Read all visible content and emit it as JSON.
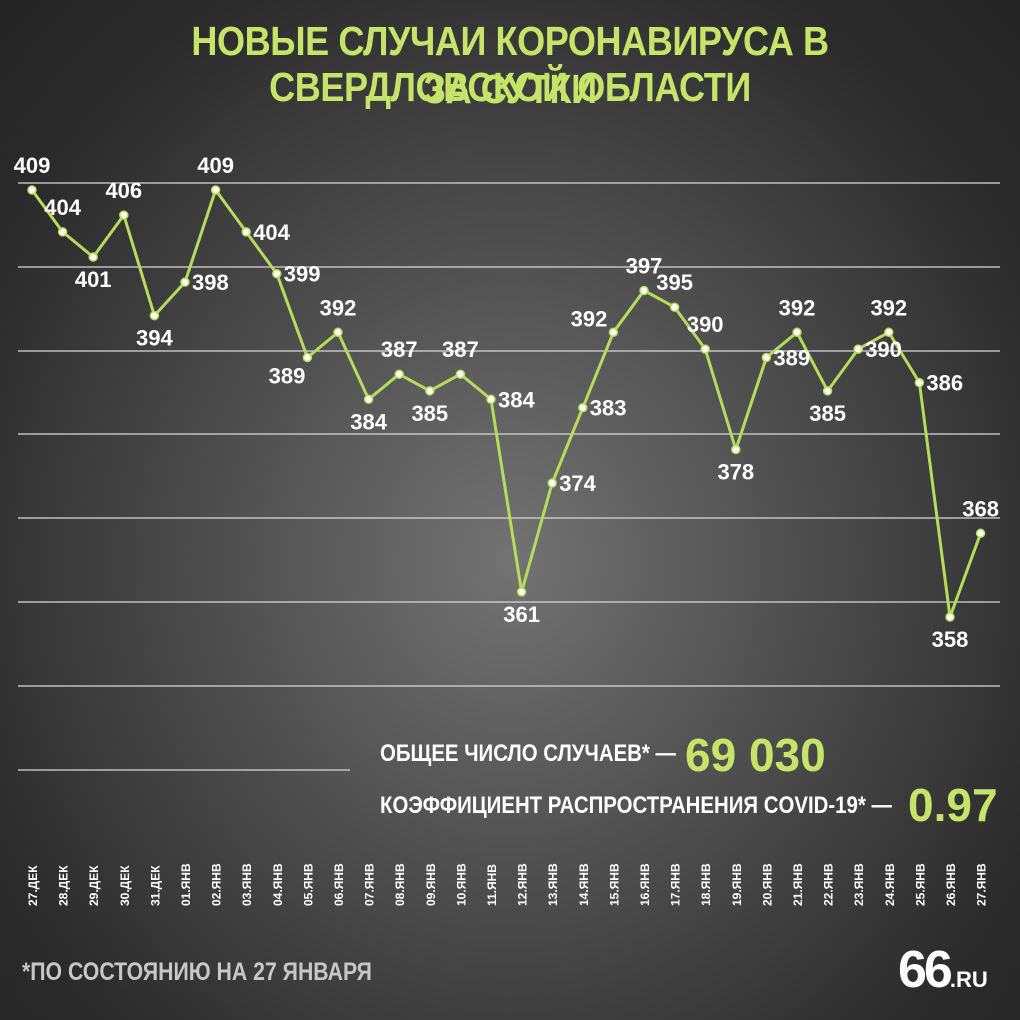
{
  "header": {
    "title_line1": "НОВЫЕ СЛУЧАИ КОРОНАВИРУСА В СВЕРДЛОВСКОЙ ОБЛАСТИ",
    "title_line2": "ЗА СУТКИ"
  },
  "chart_data": {
    "type": "line",
    "x": [
      "27.ДЕК",
      "28.ДЕК",
      "29.ДЕК",
      "30.ДЕК",
      "31.ДЕК",
      "01.ЯНВ",
      "02.ЯНВ",
      "03.ЯНВ",
      "04.ЯНВ",
      "05.ЯНВ",
      "06.ЯНВ",
      "07.ЯНВ",
      "08.ЯНВ",
      "09.ЯНВ",
      "10.ЯНВ",
      "11.ЯНВ",
      "12.ЯНВ",
      "13.ЯНВ",
      "14.ЯНВ",
      "15.ЯНВ",
      "16.ЯНВ",
      "17.ЯНВ",
      "18.ЯНВ",
      "19.ЯНВ",
      "20.ЯНВ",
      "21.ЯНВ",
      "22.ЯНВ",
      "23.ЯНВ",
      "24.ЯНВ",
      "25.ЯНВ",
      "26.ЯНВ",
      "27.ЯНВ"
    ],
    "values": [
      409,
      404,
      401,
      406,
      394,
      398,
      409,
      404,
      399,
      389,
      392,
      384,
      387,
      385,
      387,
      384,
      361,
      374,
      383,
      392,
      397,
      395,
      390,
      378,
      389,
      392,
      385,
      390,
      392,
      386,
      358,
      368
    ],
    "grid": true,
    "line_color": "#b5dc5c"
  },
  "stats": {
    "total_label": "ОБЩЕЕ ЧИСЛО СЛУЧАЕВ* —",
    "total_value": "69 030",
    "r_label": "КОЭФФИЦИЕНТ РАСПРОСТРАНЕНИЯ COVID-19* —",
    "r_value": "0.97"
  },
  "footnote": "*ПО СОСТОЯНИЮ НА 27 ЯНВАРЯ",
  "logo": {
    "number": "66",
    "suffix": ".RU"
  },
  "colors": {
    "accent": "#c6e46a",
    "text": "#ffffff"
  }
}
